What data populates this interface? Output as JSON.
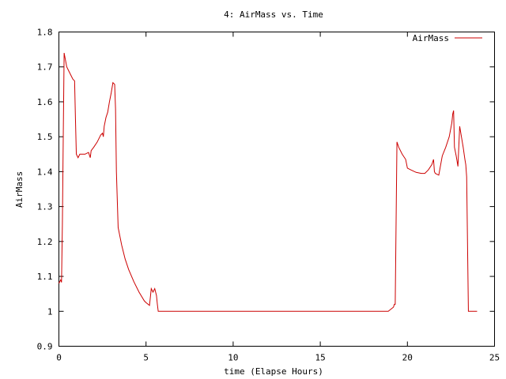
{
  "chart_data": {
    "type": "line",
    "title": "4: AirMass vs. Time",
    "xlabel": "time (Elapse Hours)",
    "ylabel": "AirMass",
    "xlim": [
      0,
      25
    ],
    "ylim": [
      0.9,
      1.8
    ],
    "xticks": [
      0,
      5,
      10,
      15,
      20,
      25
    ],
    "xtick_labels": [
      "0",
      "5",
      "10",
      "15",
      "20",
      "25"
    ],
    "yticks": [
      0.9,
      1.0,
      1.1,
      1.2,
      1.3,
      1.4,
      1.5,
      1.6,
      1.7,
      1.8
    ],
    "ytick_labels": [
      "0.9",
      "1",
      "1.1",
      "1.2",
      "1.3",
      "1.4",
      "1.5",
      "1.6",
      "1.7",
      "1.8"
    ],
    "grid": false,
    "legend_position": "top-right",
    "series": [
      {
        "name": "AirMass",
        "color": "#cc0000",
        "x": [
          0,
          0.1,
          0.15,
          0.2,
          0.25,
          0.3,
          0.45,
          0.6,
          0.8,
          0.9,
          0.95,
          1.0,
          1.1,
          1.2,
          1.5,
          1.7,
          1.8,
          1.85,
          2.0,
          2.2,
          2.4,
          2.5,
          2.55,
          2.6,
          2.7,
          2.8,
          2.9,
          3.0,
          3.1,
          3.2,
          3.25,
          3.3,
          3.35,
          3.4,
          3.5,
          3.6,
          3.8,
          4.0,
          4.3,
          4.6,
          4.9,
          5.0,
          5.2,
          5.3,
          5.4,
          5.5,
          5.6,
          5.65,
          5.7,
          5.8,
          6.0,
          8.0,
          10.0,
          14.0,
          18.0,
          18.5,
          18.9,
          19.2,
          19.25,
          19.3,
          19.4,
          19.5,
          19.7,
          19.9,
          20.0,
          20.2,
          20.5,
          20.8,
          21.0,
          21.2,
          21.4,
          21.5,
          21.55,
          21.6,
          21.8,
          22.0,
          22.2,
          22.4,
          22.55,
          22.6,
          22.65,
          22.7,
          22.8,
          22.9,
          23.0,
          23.2,
          23.3,
          23.35,
          23.4,
          23.5,
          23.6,
          23.7,
          23.9,
          24.0
        ],
        "y": [
          1.08,
          1.09,
          1.083,
          1.25,
          1.5,
          1.74,
          1.7,
          1.685,
          1.665,
          1.66,
          1.55,
          1.45,
          1.44,
          1.45,
          1.45,
          1.455,
          1.44,
          1.46,
          1.47,
          1.485,
          1.505,
          1.51,
          1.5,
          1.53,
          1.555,
          1.57,
          1.6,
          1.625,
          1.655,
          1.65,
          1.58,
          1.4,
          1.32,
          1.24,
          1.215,
          1.19,
          1.15,
          1.12,
          1.085,
          1.055,
          1.03,
          1.025,
          1.017,
          1.065,
          1.055,
          1.065,
          1.045,
          1.02,
          1.0,
          1.0,
          1.0,
          1.0,
          1.0,
          1.0,
          1.0,
          1.0,
          1.0,
          1.012,
          1.02,
          1.02,
          1.485,
          1.47,
          1.45,
          1.435,
          1.41,
          1.405,
          1.398,
          1.395,
          1.395,
          1.405,
          1.42,
          1.435,
          1.4,
          1.395,
          1.39,
          1.445,
          1.47,
          1.5,
          1.54,
          1.565,
          1.575,
          1.47,
          1.445,
          1.415,
          1.53,
          1.47,
          1.435,
          1.42,
          1.385,
          1.0,
          1.0,
          1.0,
          1.0,
          1.0
        ]
      }
    ]
  }
}
